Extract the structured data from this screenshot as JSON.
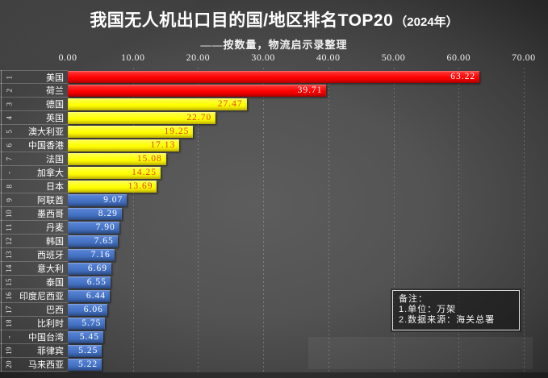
{
  "header": {
    "title_main": "我国无人机出口目的国/地区排名TOP20",
    "title_year": "（2024年）",
    "subtitle": "——按数量，物流启示录整理"
  },
  "chart_data": {
    "type": "bar",
    "orientation": "horizontal",
    "title": "我国无人机出口目的国/地区排名TOP20（2024年）",
    "subtitle": "——按数量，物流启示录整理",
    "xlim": [
      0,
      70
    ],
    "grid": true,
    "legend": false,
    "x_ticks": [
      {
        "value": 0,
        "label": "0.00"
      },
      {
        "value": 10,
        "label": "10.00"
      },
      {
        "value": 20,
        "label": "20.00"
      },
      {
        "value": 30,
        "label": "30.00"
      },
      {
        "value": 40,
        "label": "40.00"
      },
      {
        "value": 50,
        "label": "50.00"
      },
      {
        "value": 60,
        "label": "60.00"
      },
      {
        "value": 70,
        "label": "70.00"
      }
    ],
    "rows": [
      {
        "rank": "1",
        "name": "美国",
        "value": 63.22,
        "label": "63.22",
        "series": "red"
      },
      {
        "rank": "2",
        "name": "荷兰",
        "value": 39.71,
        "label": "39.71",
        "series": "red"
      },
      {
        "rank": "3",
        "name": "德国",
        "value": 27.47,
        "label": "27.47",
        "series": "yellow"
      },
      {
        "rank": "4",
        "name": "英国",
        "value": 22.7,
        "label": "22.70",
        "series": "yellow"
      },
      {
        "rank": "5",
        "name": "澳大利亚",
        "value": 19.25,
        "label": "19.25",
        "series": "yellow"
      },
      {
        "rank": "6",
        "name": "中国香港",
        "value": 17.13,
        "label": "17.13",
        "series": "yellow"
      },
      {
        "rank": "7",
        "name": "法国",
        "value": 15.08,
        "label": "15.08",
        "series": "yellow"
      },
      {
        "rank": "-",
        "name": "加拿大",
        "value": 14.25,
        "label": "14.25",
        "series": "yellow"
      },
      {
        "rank": "8",
        "name": "日本",
        "value": 13.69,
        "label": "13.69",
        "series": "yellow"
      },
      {
        "rank": "9",
        "name": "阿联酋",
        "value": 9.07,
        "label": "9.07",
        "series": "blue"
      },
      {
        "rank": "10",
        "name": "墨西哥",
        "value": 8.29,
        "label": "8.29",
        "series": "blue"
      },
      {
        "rank": "11",
        "name": "丹麦",
        "value": 7.9,
        "label": "7.90",
        "series": "blue"
      },
      {
        "rank": "12",
        "name": "韩国",
        "value": 7.65,
        "label": "7.65",
        "series": "blue"
      },
      {
        "rank": "13",
        "name": "西班牙",
        "value": 7.16,
        "label": "7.16",
        "series": "blue"
      },
      {
        "rank": "14",
        "name": "意大利",
        "value": 6.69,
        "label": "6.69",
        "series": "blue"
      },
      {
        "rank": "15",
        "name": "泰国",
        "value": 6.55,
        "label": "6.55",
        "series": "blue"
      },
      {
        "rank": "16",
        "name": "印度尼西亚",
        "value": 6.44,
        "label": "6.44",
        "series": "blue"
      },
      {
        "rank": "17",
        "name": "巴西",
        "value": 6.06,
        "label": "6.06",
        "series": "blue"
      },
      {
        "rank": "18",
        "name": "比利时",
        "value": 5.75,
        "label": "5.75",
        "series": "blue"
      },
      {
        "rank": "-",
        "name": "中国台湾",
        "value": 5.45,
        "label": "5.45",
        "series": "blue"
      },
      {
        "rank": "19",
        "name": "菲律宾",
        "value": 5.25,
        "label": "5.25",
        "series": "blue"
      },
      {
        "rank": "20",
        "name": "马来西亚",
        "value": 5.22,
        "label": "5.22",
        "series": "blue"
      }
    ],
    "series_colors": {
      "red": "#fd0000",
      "yellow": "#ffff00",
      "blue": "#4472c4"
    },
    "series_gradients": {
      "red": [
        "#ff3b3b",
        "#fd0000",
        "#cf0000"
      ],
      "yellow": [
        "#ffff55",
        "#ffff00",
        "#e3d400"
      ],
      "blue": [
        "#5c87d8",
        "#4472c4",
        "#35599b"
      ]
    },
    "value_label_colors": {
      "red": "#ffffff",
      "yellow": "#e2441a",
      "blue": "#ffffff"
    }
  },
  "notes": {
    "line0": "备注：",
    "line1": "1.单位：万架",
    "line2": "2.数据来源：海关总署"
  }
}
